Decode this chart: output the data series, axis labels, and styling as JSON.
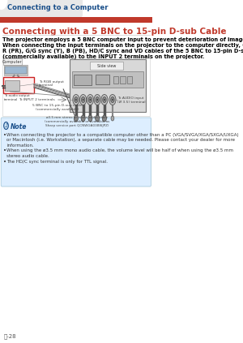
{
  "page_bg": "#ffffff",
  "header_tab_text": "Connecting to a Computer",
  "header_tab_text_color": "#1a4f8a",
  "red_bar_color": "#c0392b",
  "section_title": "Connecting with a 5 BNC to 15-pin D-sub Cable",
  "section_title_color": "#c0392b",
  "body_text_lines": [
    "The projector employs a 5 BNC computer input to prevent deterioration of image quality.",
    "When connecting the input terminals on the projector to the computer directly, Connect the",
    "R (PR), G/G sync (Y), B (PB), HD/C sync and VD cables of the 5 BNC to 15-pin D-sub cable",
    "(commercially available) to the INPUT 2 terminals on the projector."
  ],
  "body_text_color": "#000000",
  "note_bg": "#ddeeff",
  "note_border_color": "#aaccdd",
  "note_title": "Note",
  "note_title_color": "#1a4f8a",
  "note_bullets": [
    "When connecting the projector to a compatible computer other than a PC (VGA/SVGA/XGA/SXGA/UXGA)\nor Macintosh (i.e. Workstation), a separate cable may be needed. Please contact your dealer for more\ninformation.",
    "When using the ø3.5 mm mono audio cable, the volume level will be half of when using the ø3.5 mm\nstereo audio cable.",
    "The HD/C sync terminal is only for TTL signal."
  ],
  "note_text_color": "#333333",
  "page_number": "ⓝ-28",
  "diag_computer_label": "Computer",
  "diag_side_view_label": "Side view",
  "diag_rgb_label": "To RGB output\nterminal",
  "diag_audio_out_label": "To audio output\nterminal",
  "diag_input2_label": "To INPUT 2 terminals",
  "diag_audio_in_label": "To AUDIO input\n(Ø 3.5) terminal",
  "diag_5bnc_label": "5 BNC to 15-pin D-sub cable\n(commercially available)",
  "diag_35mm_label": "ø3.5 mm stereo or mono audio cable\n(commercially available or available as\nSharp service part QCNWGA038WJPZ)"
}
